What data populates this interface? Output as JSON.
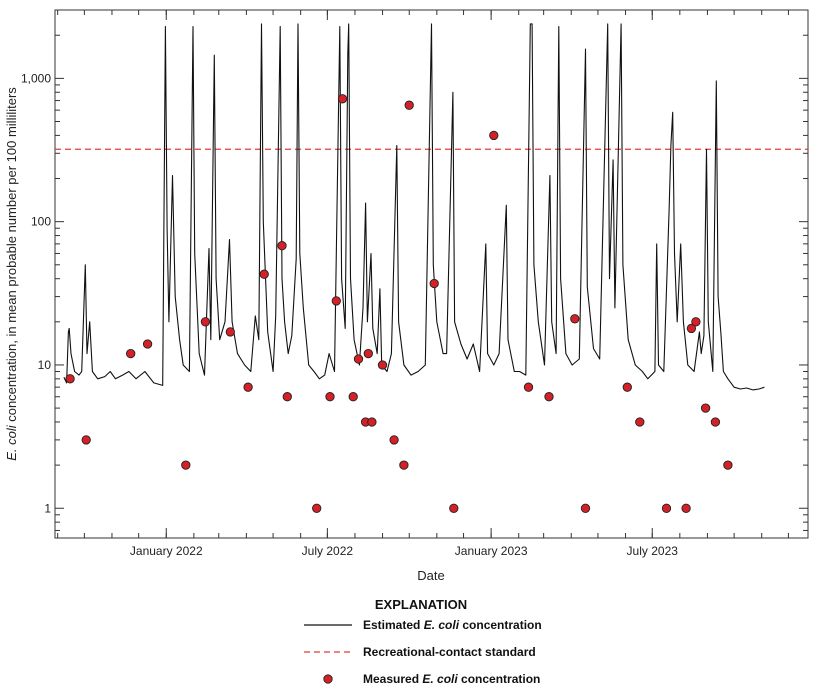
{
  "chart_data": {
    "type": "line",
    "xlabel": "Date",
    "ylabel_pre": "E. coli",
    "ylabel_post": " concentration, in mean probable number per 100 milliliters",
    "yscale": "log",
    "ylim": [
      0.62,
      3000
    ],
    "xlim": [
      "2021-08-29",
      "2023-12-23"
    ],
    "grid": false,
    "x_ticks": [
      {
        "date": "2022-01-01",
        "label": "January 2022"
      },
      {
        "date": "2022-07-01",
        "label": "July 2022"
      },
      {
        "date": "2023-01-01",
        "label": "January 2023"
      },
      {
        "date": "2023-07-01",
        "label": "July 2023"
      }
    ],
    "y_ticks": [
      {
        "value": 1,
        "label": "1"
      },
      {
        "value": 10,
        "label": "10"
      },
      {
        "value": 100,
        "label": "100"
      },
      {
        "value": 1000,
        "label": "1,000"
      }
    ],
    "standard": {
      "value": 320,
      "color": "#e03c3c"
    },
    "colors": {
      "line": "#111111",
      "marker_fill": "#d42027",
      "marker_edge": "#222222"
    },
    "series": [
      {
        "name": "Estimated E. coli concentration",
        "type": "line",
        "points": [
          [
            "2021-09-08",
            8.2
          ],
          [
            "2021-09-11",
            7.5
          ],
          [
            "2021-09-13",
            17
          ],
          [
            "2021-09-14",
            18
          ],
          [
            "2021-09-16",
            12
          ],
          [
            "2021-09-20",
            9
          ],
          [
            "2021-09-25",
            8.5
          ],
          [
            "2021-09-28",
            9
          ],
          [
            "2021-10-02",
            50
          ],
          [
            "2021-10-04",
            12
          ],
          [
            "2021-10-07",
            20
          ],
          [
            "2021-10-10",
            9
          ],
          [
            "2021-10-16",
            8
          ],
          [
            "2021-10-24",
            8.3
          ],
          [
            "2021-10-30",
            9
          ],
          [
            "2021-11-05",
            8
          ],
          [
            "2021-11-13",
            8.5
          ],
          [
            "2021-11-20",
            9
          ],
          [
            "2021-11-28",
            8
          ],
          [
            "2021-12-08",
            9
          ],
          [
            "2021-12-18",
            7.5
          ],
          [
            "2021-12-28",
            7.2
          ],
          [
            "2021-12-31",
            2300
          ],
          [
            "2022-01-02",
            90
          ],
          [
            "2022-01-04",
            20
          ],
          [
            "2022-01-08",
            210
          ],
          [
            "2022-01-11",
            30
          ],
          [
            "2022-01-16",
            15
          ],
          [
            "2022-01-20",
            10
          ],
          [
            "2022-01-27",
            9
          ],
          [
            "2022-01-31",
            2300
          ],
          [
            "2022-02-02",
            60
          ],
          [
            "2022-02-07",
            12
          ],
          [
            "2022-02-13",
            8.5
          ],
          [
            "2022-02-18",
            65
          ],
          [
            "2022-02-20",
            15
          ],
          [
            "2022-02-24",
            1450
          ],
          [
            "2022-02-26",
            40
          ],
          [
            "2022-03-02",
            15
          ],
          [
            "2022-03-08",
            20
          ],
          [
            "2022-03-13",
            75
          ],
          [
            "2022-03-16",
            20
          ],
          [
            "2022-03-22",
            12
          ],
          [
            "2022-03-30",
            10
          ],
          [
            "2022-04-06",
            9
          ],
          [
            "2022-04-11",
            22
          ],
          [
            "2022-04-15",
            15
          ],
          [
            "2022-04-18",
            2400
          ],
          [
            "2022-04-20",
            100
          ],
          [
            "2022-04-25",
            17
          ],
          [
            "2022-05-01",
            9
          ],
          [
            "2022-05-04",
            22
          ],
          [
            "2022-05-09",
            2300
          ],
          [
            "2022-05-11",
            40
          ],
          [
            "2022-05-14",
            20
          ],
          [
            "2022-05-18",
            12
          ],
          [
            "2022-05-22",
            16
          ],
          [
            "2022-05-27",
            55
          ],
          [
            "2022-05-29",
            2400
          ],
          [
            "2022-05-31",
            60
          ],
          [
            "2022-06-04",
            25
          ],
          [
            "2022-06-10",
            10
          ],
          [
            "2022-06-16",
            9
          ],
          [
            "2022-06-22",
            8
          ],
          [
            "2022-06-28",
            8.5
          ],
          [
            "2022-07-03",
            12
          ],
          [
            "2022-07-09",
            9
          ],
          [
            "2022-07-15",
            2300
          ],
          [
            "2022-07-17",
            40
          ],
          [
            "2022-07-21",
            18
          ],
          [
            "2022-07-24",
            1500
          ],
          [
            "2022-07-25",
            2400
          ],
          [
            "2022-07-27",
            40
          ],
          [
            "2022-07-31",
            15
          ],
          [
            "2022-08-06",
            10
          ],
          [
            "2022-08-10",
            25
          ],
          [
            "2022-08-13",
            135
          ],
          [
            "2022-08-15",
            20
          ],
          [
            "2022-08-19",
            60
          ],
          [
            "2022-08-21",
            18
          ],
          [
            "2022-08-26",
            12
          ],
          [
            "2022-08-29",
            34
          ],
          [
            "2022-08-31",
            10
          ],
          [
            "2022-09-06",
            9
          ],
          [
            "2022-09-11",
            12
          ],
          [
            "2022-09-17",
            340
          ],
          [
            "2022-09-19",
            20
          ],
          [
            "2022-09-25",
            10
          ],
          [
            "2022-10-03",
            8.5
          ],
          [
            "2022-10-11",
            9
          ],
          [
            "2022-10-19",
            10
          ],
          [
            "2022-10-26",
            2400
          ],
          [
            "2022-10-28",
            50
          ],
          [
            "2022-11-01",
            20
          ],
          [
            "2022-11-08",
            12
          ],
          [
            "2022-11-12",
            12
          ],
          [
            "2022-11-19",
            800
          ],
          [
            "2022-11-21",
            20
          ],
          [
            "2022-11-28",
            14
          ],
          [
            "2022-12-05",
            11
          ],
          [
            "2022-12-12",
            14
          ],
          [
            "2022-12-19",
            9
          ],
          [
            "2022-12-26",
            70
          ],
          [
            "2022-12-28",
            12
          ],
          [
            "2023-01-04",
            10
          ],
          [
            "2023-01-10",
            12
          ],
          [
            "2023-01-18",
            130
          ],
          [
            "2023-01-20",
            15
          ],
          [
            "2023-01-27",
            9
          ],
          [
            "2023-02-02",
            9
          ],
          [
            "2023-02-09",
            8.5
          ],
          [
            "2023-02-14",
            2400
          ],
          [
            "2023-02-16",
            2400
          ],
          [
            "2023-02-18",
            50
          ],
          [
            "2023-02-23",
            20
          ],
          [
            "2023-03-02",
            10
          ],
          [
            "2023-03-08",
            210
          ],
          [
            "2023-03-10",
            20
          ],
          [
            "2023-03-15",
            12
          ],
          [
            "2023-03-18",
            2300
          ],
          [
            "2023-03-20",
            40
          ],
          [
            "2023-03-26",
            12
          ],
          [
            "2023-04-02",
            10
          ],
          [
            "2023-04-10",
            11
          ],
          [
            "2023-04-17",
            1600
          ],
          [
            "2023-04-19",
            35
          ],
          [
            "2023-04-26",
            13
          ],
          [
            "2023-05-03",
            11
          ],
          [
            "2023-05-12",
            2400
          ],
          [
            "2023-05-14",
            40
          ],
          [
            "2023-05-18",
            270
          ],
          [
            "2023-05-20",
            25
          ],
          [
            "2023-05-27",
            2400
          ],
          [
            "2023-05-29",
            50
          ],
          [
            "2023-06-04",
            15
          ],
          [
            "2023-06-12",
            10
          ],
          [
            "2023-06-20",
            9
          ],
          [
            "2023-06-26",
            8
          ],
          [
            "2023-07-04",
            9
          ],
          [
            "2023-07-06",
            70
          ],
          [
            "2023-07-08",
            10
          ],
          [
            "2023-07-14",
            9
          ],
          [
            "2023-07-20",
            120
          ],
          [
            "2023-07-22",
            340
          ],
          [
            "2023-07-24",
            580
          ],
          [
            "2023-07-26",
            60
          ],
          [
            "2023-07-29",
            20
          ],
          [
            "2023-08-02",
            70
          ],
          [
            "2023-08-05",
            20
          ],
          [
            "2023-08-10",
            10
          ],
          [
            "2023-08-17",
            9
          ],
          [
            "2023-08-23",
            17
          ],
          [
            "2023-08-25",
            12
          ],
          [
            "2023-08-28",
            16
          ],
          [
            "2023-08-31",
            320
          ],
          [
            "2023-09-02",
            20
          ],
          [
            "2023-09-07",
            9
          ],
          [
            "2023-09-11",
            960
          ],
          [
            "2023-09-13",
            30
          ],
          [
            "2023-09-16",
            17
          ],
          [
            "2023-09-19",
            9
          ],
          [
            "2023-09-24",
            8
          ],
          [
            "2023-10-01",
            7
          ],
          [
            "2023-10-08",
            6.8
          ],
          [
            "2023-10-15",
            6.9
          ],
          [
            "2023-10-22",
            6.7
          ],
          [
            "2023-10-29",
            6.8
          ],
          [
            "2023-11-04",
            7
          ]
        ]
      },
      {
        "name": "Measured E. coli concentration",
        "type": "scatter",
        "points": [
          [
            "2021-09-15",
            8
          ],
          [
            "2021-10-03",
            3
          ],
          [
            "2021-11-22",
            12
          ],
          [
            "2021-12-11",
            14
          ],
          [
            "2022-01-23",
            2
          ],
          [
            "2022-02-14",
            20
          ],
          [
            "2022-03-14",
            17
          ],
          [
            "2022-04-03",
            7
          ],
          [
            "2022-04-21",
            43
          ],
          [
            "2022-05-11",
            68
          ],
          [
            "2022-05-17",
            6
          ],
          [
            "2022-06-19",
            1
          ],
          [
            "2022-07-04",
            6
          ],
          [
            "2022-07-11",
            28
          ],
          [
            "2022-07-18",
            720
          ],
          [
            "2022-07-30",
            6
          ],
          [
            "2022-08-05",
            11
          ],
          [
            "2022-08-13",
            4
          ],
          [
            "2022-08-16",
            12
          ],
          [
            "2022-08-20",
            4
          ],
          [
            "2022-09-01",
            10
          ],
          [
            "2022-09-14",
            3
          ],
          [
            "2022-09-25",
            2
          ],
          [
            "2022-10-01",
            650
          ],
          [
            "2022-10-29",
            37
          ],
          [
            "2022-11-20",
            1
          ],
          [
            "2023-01-04",
            400
          ],
          [
            "2023-02-12",
            7
          ],
          [
            "2023-03-07",
            6
          ],
          [
            "2023-04-05",
            21
          ],
          [
            "2023-04-17",
            1
          ],
          [
            "2023-06-03",
            7
          ],
          [
            "2023-06-17",
            4
          ],
          [
            "2023-07-17",
            1
          ],
          [
            "2023-08-08",
            1
          ],
          [
            "2023-08-14",
            18
          ],
          [
            "2023-08-19",
            20
          ],
          [
            "2023-08-30",
            5
          ],
          [
            "2023-09-10",
            4
          ],
          [
            "2023-09-24",
            2
          ]
        ]
      }
    ],
    "legend": {
      "title": "EXPLANATION",
      "placement": "bottom-center",
      "items": [
        {
          "key": "line",
          "pre": "Estimated ",
          "em": "E. coli",
          "post": " concentration"
        },
        {
          "key": "standard",
          "pre": "Recreational-contact standard",
          "em": "",
          "post": ""
        },
        {
          "key": "scatter",
          "pre": "Measured ",
          "em": "E. coli",
          "post": " concentration"
        }
      ]
    }
  }
}
